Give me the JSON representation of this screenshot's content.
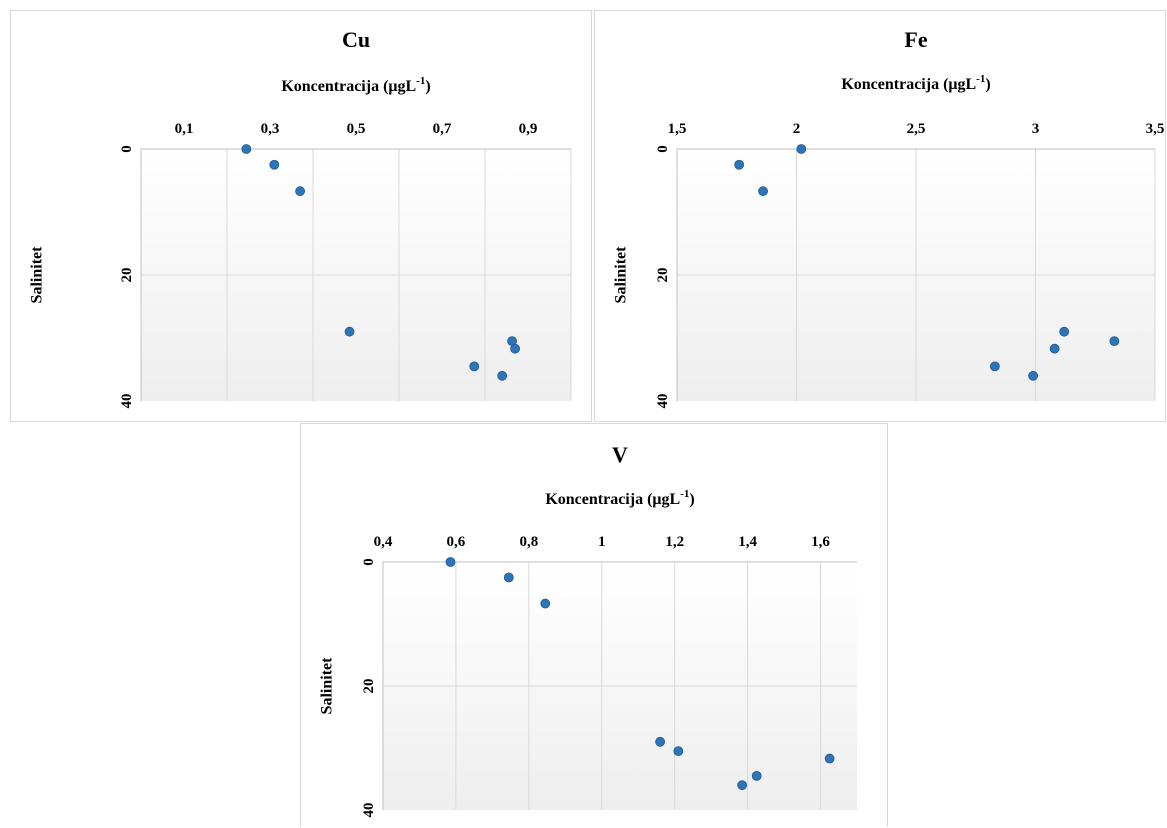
{
  "chart_data": [
    {
      "type": "scatter",
      "title": "Cu",
      "xlabel": "Koncentracija  (μgL",
      "xlabel_sup": "-1",
      "xlabel_end": ")",
      "ylabel": "Salinitet",
      "xlim": [
        0,
        1.0
      ],
      "ylim": [
        0,
        40
      ],
      "x_ticks": [
        0.1,
        0.3,
        0.5,
        0.7,
        0.9
      ],
      "x_tick_labels": [
        "0,1",
        "0,3",
        "0,5",
        "0,7",
        "0,9"
      ],
      "x_gridlines": [
        0.2,
        0.4,
        0.6,
        0.8,
        1.0
      ],
      "y_ticks": [
        0,
        20,
        40
      ],
      "y_tick_labels": [
        "0",
        "20",
        "40"
      ],
      "y_gridlines": [
        20
      ],
      "y_reversed": true,
      "x_axis_position": "top",
      "points": [
        {
          "x": 0.245,
          "y": 0
        },
        {
          "x": 0.31,
          "y": 2.5
        },
        {
          "x": 0.37,
          "y": 6.7
        },
        {
          "x": 0.485,
          "y": 29
        },
        {
          "x": 0.775,
          "y": 34.5
        },
        {
          "x": 0.84,
          "y": 36
        },
        {
          "x": 0.863,
          "y": 30.5
        },
        {
          "x": 0.87,
          "y": 31.7
        }
      ]
    },
    {
      "type": "scatter",
      "title": "Fe",
      "xlabel": "Koncentracija  (μgL",
      "xlabel_sup": "-1",
      "xlabel_end": ")",
      "ylabel": "Salinitet",
      "xlim": [
        1.5,
        3.5
      ],
      "ylim": [
        0,
        40
      ],
      "x_ticks": [
        1.5,
        2,
        2.5,
        3,
        3.5
      ],
      "x_tick_labels": [
        "1,5",
        "2",
        "2,5",
        "3",
        "3,5"
      ],
      "x_gridlines": [
        2.0,
        2.5,
        3.0,
        3.5
      ],
      "y_ticks": [
        0,
        20,
        40
      ],
      "y_tick_labels": [
        "0",
        "20",
        "40"
      ],
      "y_gridlines": [
        20
      ],
      "y_reversed": true,
      "x_axis_position": "top",
      "points": [
        {
          "x": 2.02,
          "y": 0
        },
        {
          "x": 1.76,
          "y": 2.5
        },
        {
          "x": 1.86,
          "y": 6.7
        },
        {
          "x": 3.12,
          "y": 29
        },
        {
          "x": 2.83,
          "y": 34.5
        },
        {
          "x": 2.99,
          "y": 36
        },
        {
          "x": 3.08,
          "y": 31.7
        },
        {
          "x": 3.33,
          "y": 30.5
        }
      ]
    },
    {
      "type": "scatter",
      "title": "V",
      "xlabel": "Koncentracija  (μgL",
      "xlabel_sup": "-1",
      "xlabel_end": ")",
      "ylabel": "Salinitet",
      "xlim": [
        0.4,
        1.7
      ],
      "ylim": [
        0,
        40
      ],
      "x_ticks": [
        0.4,
        0.6,
        0.8,
        1.0,
        1.2,
        1.4,
        1.6
      ],
      "x_tick_labels": [
        "0,4",
        "0,6",
        "0,8",
        "1",
        "1,2",
        "1,4",
        "1,6"
      ],
      "x_gridlines": [
        0.6,
        0.8,
        1.0,
        1.2,
        1.4,
        1.6
      ],
      "y_ticks": [
        0,
        20,
        40
      ],
      "y_tick_labels": [
        "0",
        "20",
        "40"
      ],
      "y_gridlines": [
        20
      ],
      "y_reversed": true,
      "x_axis_position": "top",
      "points": [
        {
          "x": 0.585,
          "y": 0
        },
        {
          "x": 0.745,
          "y": 2.5
        },
        {
          "x": 0.845,
          "y": 6.7
        },
        {
          "x": 1.16,
          "y": 29
        },
        {
          "x": 1.21,
          "y": 30.5
        },
        {
          "x": 1.385,
          "y": 36
        },
        {
          "x": 1.425,
          "y": 34.5
        },
        {
          "x": 1.625,
          "y": 31.7
        }
      ]
    }
  ],
  "colors": {
    "marker": "#2e75b6",
    "gridline": "#d9d9d9",
    "axis": "#bfbfbf",
    "plot_gradient_top": "#ffffff",
    "plot_gradient_bottom": "#eeeeee"
  }
}
